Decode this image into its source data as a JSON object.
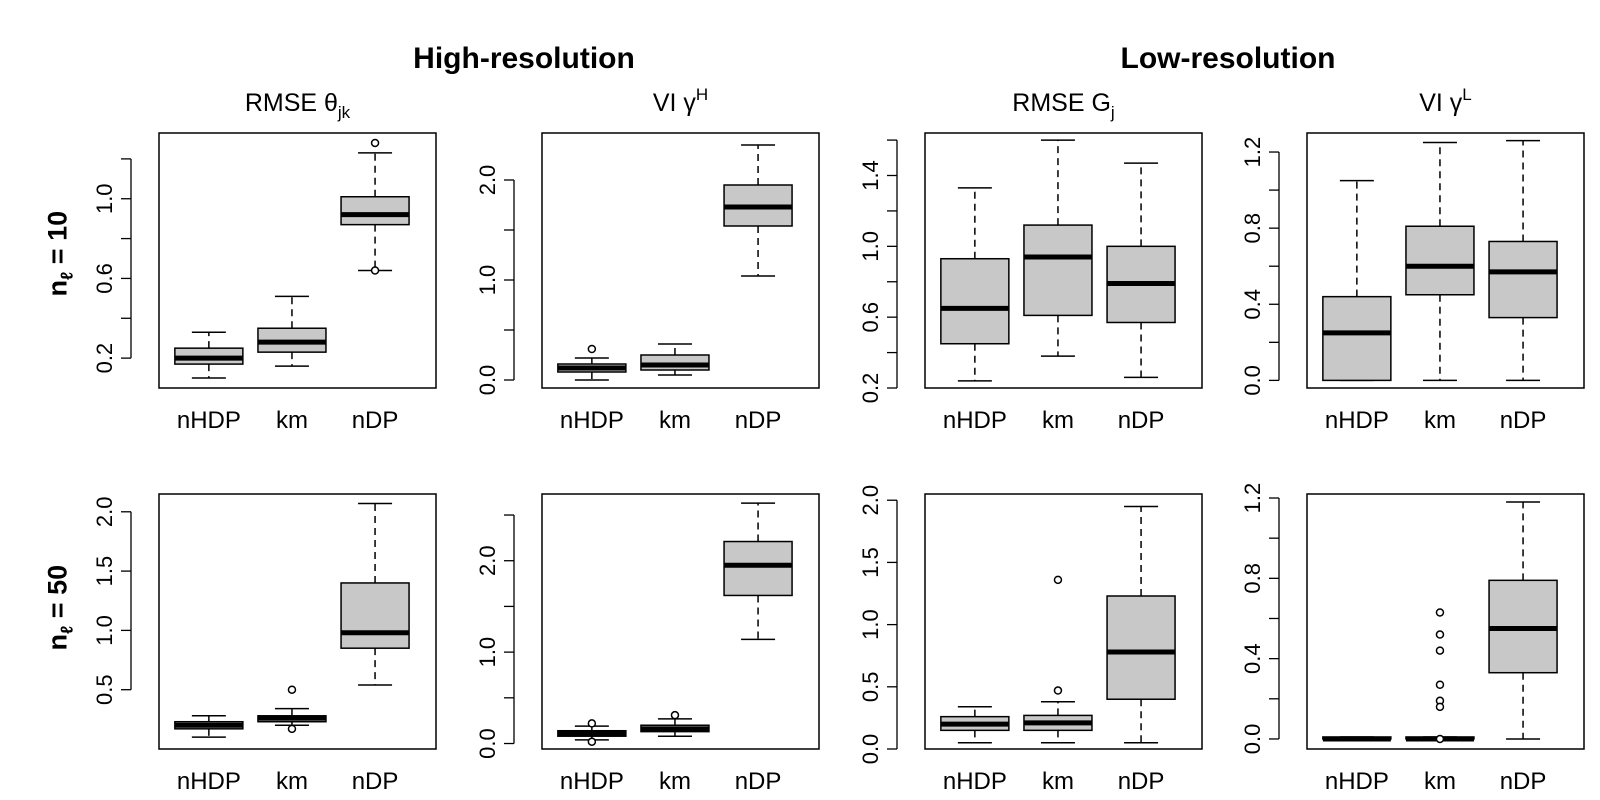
{
  "section_titles": [
    "High-resolution",
    "Low-resolution"
  ],
  "row_labels": [
    {
      "main": "n",
      "sub": "ℓ",
      "rest": " = 10"
    },
    {
      "main": "n",
      "sub": "ℓ",
      "rest": " = 50"
    }
  ],
  "chart_data": [
    {
      "type": "boxplot",
      "row": 0,
      "col": 0,
      "title": {
        "main": "RMSE θ",
        "sub": "jk",
        "sup": ""
      },
      "categories": [
        "nHDP",
        "km",
        "nDP"
      ],
      "ylim": [
        0.05,
        1.33
      ],
      "yticks": [
        0.2,
        0.6,
        1.0
      ],
      "yticklabels": [
        "0.2",
        "0.6",
        "1.0"
      ],
      "extra_ticks": [
        0.4,
        0.8,
        1.2
      ],
      "boxes": [
        {
          "min": 0.1,
          "q1": 0.17,
          "median": 0.2,
          "q3": 0.25,
          "max": 0.33,
          "outliers": []
        },
        {
          "min": 0.16,
          "q1": 0.23,
          "median": 0.28,
          "q3": 0.35,
          "max": 0.51,
          "outliers": []
        },
        {
          "min": 0.64,
          "q1": 0.87,
          "median": 0.92,
          "q3": 1.01,
          "max": 1.23,
          "outliers": [
            1.28,
            0.64
          ]
        }
      ]
    },
    {
      "type": "boxplot",
      "row": 0,
      "col": 1,
      "title": {
        "main": "VI γ",
        "sub": "",
        "sup": "H"
      },
      "categories": [
        "nHDP",
        "km",
        "nDP"
      ],
      "ylim": [
        -0.08,
        2.47
      ],
      "yticks": [
        0.0,
        1.0,
        2.0
      ],
      "yticklabels": [
        "0.0",
        "1.0",
        "2.0"
      ],
      "extra_ticks": [
        0.5,
        1.5
      ],
      "boxes": [
        {
          "min": 0.0,
          "q1": 0.08,
          "median": 0.12,
          "q3": 0.16,
          "max": 0.22,
          "outliers": [
            0.31
          ]
        },
        {
          "min": 0.05,
          "q1": 0.1,
          "median": 0.15,
          "q3": 0.25,
          "max": 0.36,
          "outliers": []
        },
        {
          "min": 1.04,
          "q1": 1.54,
          "median": 1.73,
          "q3": 1.95,
          "max": 2.35,
          "outliers": []
        }
      ]
    },
    {
      "type": "boxplot",
      "row": 0,
      "col": 2,
      "title": {
        "main": "RMSE G",
        "sub": "j",
        "sup": ""
      },
      "categories": [
        "nHDP",
        "km",
        "nDP"
      ],
      "ylim": [
        0.2,
        1.64
      ],
      "yticks": [
        0.2,
        0.6,
        1.0,
        1.4
      ],
      "yticklabels": [
        "0.2",
        "0.6",
        "1.0",
        "1.4"
      ],
      "extra_ticks": [
        0.4,
        0.8,
        1.2,
        1.6
      ],
      "boxes": [
        {
          "min": 0.24,
          "q1": 0.45,
          "median": 0.65,
          "q3": 0.93,
          "max": 1.33,
          "outliers": []
        },
        {
          "min": 0.38,
          "q1": 0.61,
          "median": 0.94,
          "q3": 1.12,
          "max": 1.6,
          "outliers": []
        },
        {
          "min": 0.26,
          "q1": 0.57,
          "median": 0.79,
          "q3": 1.0,
          "max": 1.47,
          "outliers": []
        }
      ]
    },
    {
      "type": "boxplot",
      "row": 0,
      "col": 3,
      "title": {
        "main": "VI γ",
        "sub": "",
        "sup": "L"
      },
      "categories": [
        "nHDP",
        "km",
        "nDP"
      ],
      "ylim": [
        -0.04,
        1.3
      ],
      "yticks": [
        0.0,
        0.4,
        0.8,
        1.2
      ],
      "yticklabels": [
        "0.0",
        "0.4",
        "0.8",
        "1.2"
      ],
      "extra_ticks": [
        0.2,
        0.6,
        1.0
      ],
      "boxes": [
        {
          "min": 0.0,
          "q1": 0.0,
          "median": 0.25,
          "q3": 0.44,
          "max": 1.05,
          "outliers": []
        },
        {
          "min": 0.0,
          "q1": 0.45,
          "median": 0.6,
          "q3": 0.81,
          "max": 1.25,
          "outliers": []
        },
        {
          "min": 0.0,
          "q1": 0.33,
          "median": 0.57,
          "q3": 0.73,
          "max": 1.26,
          "outliers": []
        }
      ]
    },
    {
      "type": "boxplot",
      "row": 1,
      "col": 0,
      "title": null,
      "categories": [
        "nHDP",
        "km",
        "nDP"
      ],
      "ylim": [
        0.0,
        2.15
      ],
      "yticks": [
        0.5,
        1.0,
        1.5,
        2.0
      ],
      "yticklabels": [
        "0.5",
        "1.0",
        "1.5",
        "2.0"
      ],
      "extra_ticks": [],
      "boxes": [
        {
          "min": 0.1,
          "q1": 0.17,
          "median": 0.2,
          "q3": 0.23,
          "max": 0.28,
          "outliers": []
        },
        {
          "min": 0.2,
          "q1": 0.23,
          "median": 0.26,
          "q3": 0.28,
          "max": 0.34,
          "outliers": [
            0.5,
            0.17
          ]
        },
        {
          "min": 0.54,
          "q1": 0.85,
          "median": 0.98,
          "q3": 1.4,
          "max": 2.07,
          "outliers": []
        }
      ]
    },
    {
      "type": "boxplot",
      "row": 1,
      "col": 1,
      "title": null,
      "categories": [
        "nHDP",
        "km",
        "nDP"
      ],
      "ylim": [
        -0.06,
        2.73
      ],
      "yticks": [
        0.0,
        1.0,
        2.0
      ],
      "yticklabels": [
        "0.0",
        "1.0",
        "2.0"
      ],
      "extra_ticks": [
        0.5,
        1.5,
        2.5
      ],
      "boxes": [
        {
          "min": 0.04,
          "q1": 0.08,
          "median": 0.11,
          "q3": 0.14,
          "max": 0.19,
          "outliers": [
            0.22,
            0.02
          ]
        },
        {
          "min": 0.08,
          "q1": 0.13,
          "median": 0.16,
          "q3": 0.2,
          "max": 0.27,
          "outliers": [
            0.31
          ]
        },
        {
          "min": 1.14,
          "q1": 1.62,
          "median": 1.95,
          "q3": 2.21,
          "max": 2.63,
          "outliers": []
        }
      ]
    },
    {
      "type": "boxplot",
      "row": 1,
      "col": 2,
      "title": null,
      "categories": [
        "nHDP",
        "km",
        "nDP"
      ],
      "ylim": [
        0.0,
        2.05
      ],
      "yticks": [
        0.0,
        0.5,
        1.0,
        1.5,
        2.0
      ],
      "yticklabels": [
        "0.0",
        "0.5",
        "1.0",
        "1.5",
        "2.0"
      ],
      "extra_ticks": [],
      "boxes": [
        {
          "min": 0.05,
          "q1": 0.15,
          "median": 0.2,
          "q3": 0.26,
          "max": 0.34,
          "outliers": []
        },
        {
          "min": 0.05,
          "q1": 0.15,
          "median": 0.21,
          "q3": 0.27,
          "max": 0.38,
          "outliers": [
            1.36,
            0.47
          ]
        },
        {
          "min": 0.05,
          "q1": 0.4,
          "median": 0.78,
          "q3": 1.23,
          "max": 1.95,
          "outliers": []
        }
      ]
    },
    {
      "type": "boxplot",
      "row": 1,
      "col": 3,
      "title": null,
      "categories": [
        "nHDP",
        "km",
        "nDP"
      ],
      "ylim": [
        -0.05,
        1.22
      ],
      "yticks": [
        0.0,
        0.4,
        0.8,
        1.2
      ],
      "yticklabels": [
        "0.0",
        "0.4",
        "0.8",
        "1.2"
      ],
      "extra_ticks": [
        0.2,
        0.6,
        1.0
      ],
      "boxes": [
        {
          "min": 0.0,
          "q1": 0.0,
          "median": 0.0,
          "q3": 0.01,
          "max": 0.01,
          "outliers": []
        },
        {
          "min": 0.0,
          "q1": 0.0,
          "median": 0.0,
          "q3": 0.01,
          "max": 0.01,
          "outliers": [
            0.63,
            0.52,
            0.44,
            0.27,
            0.19,
            0.16,
            0.0
          ]
        },
        {
          "min": 0.0,
          "q1": 0.33,
          "median": 0.55,
          "q3": 0.79,
          "max": 1.18,
          "outliers": []
        }
      ]
    }
  ]
}
